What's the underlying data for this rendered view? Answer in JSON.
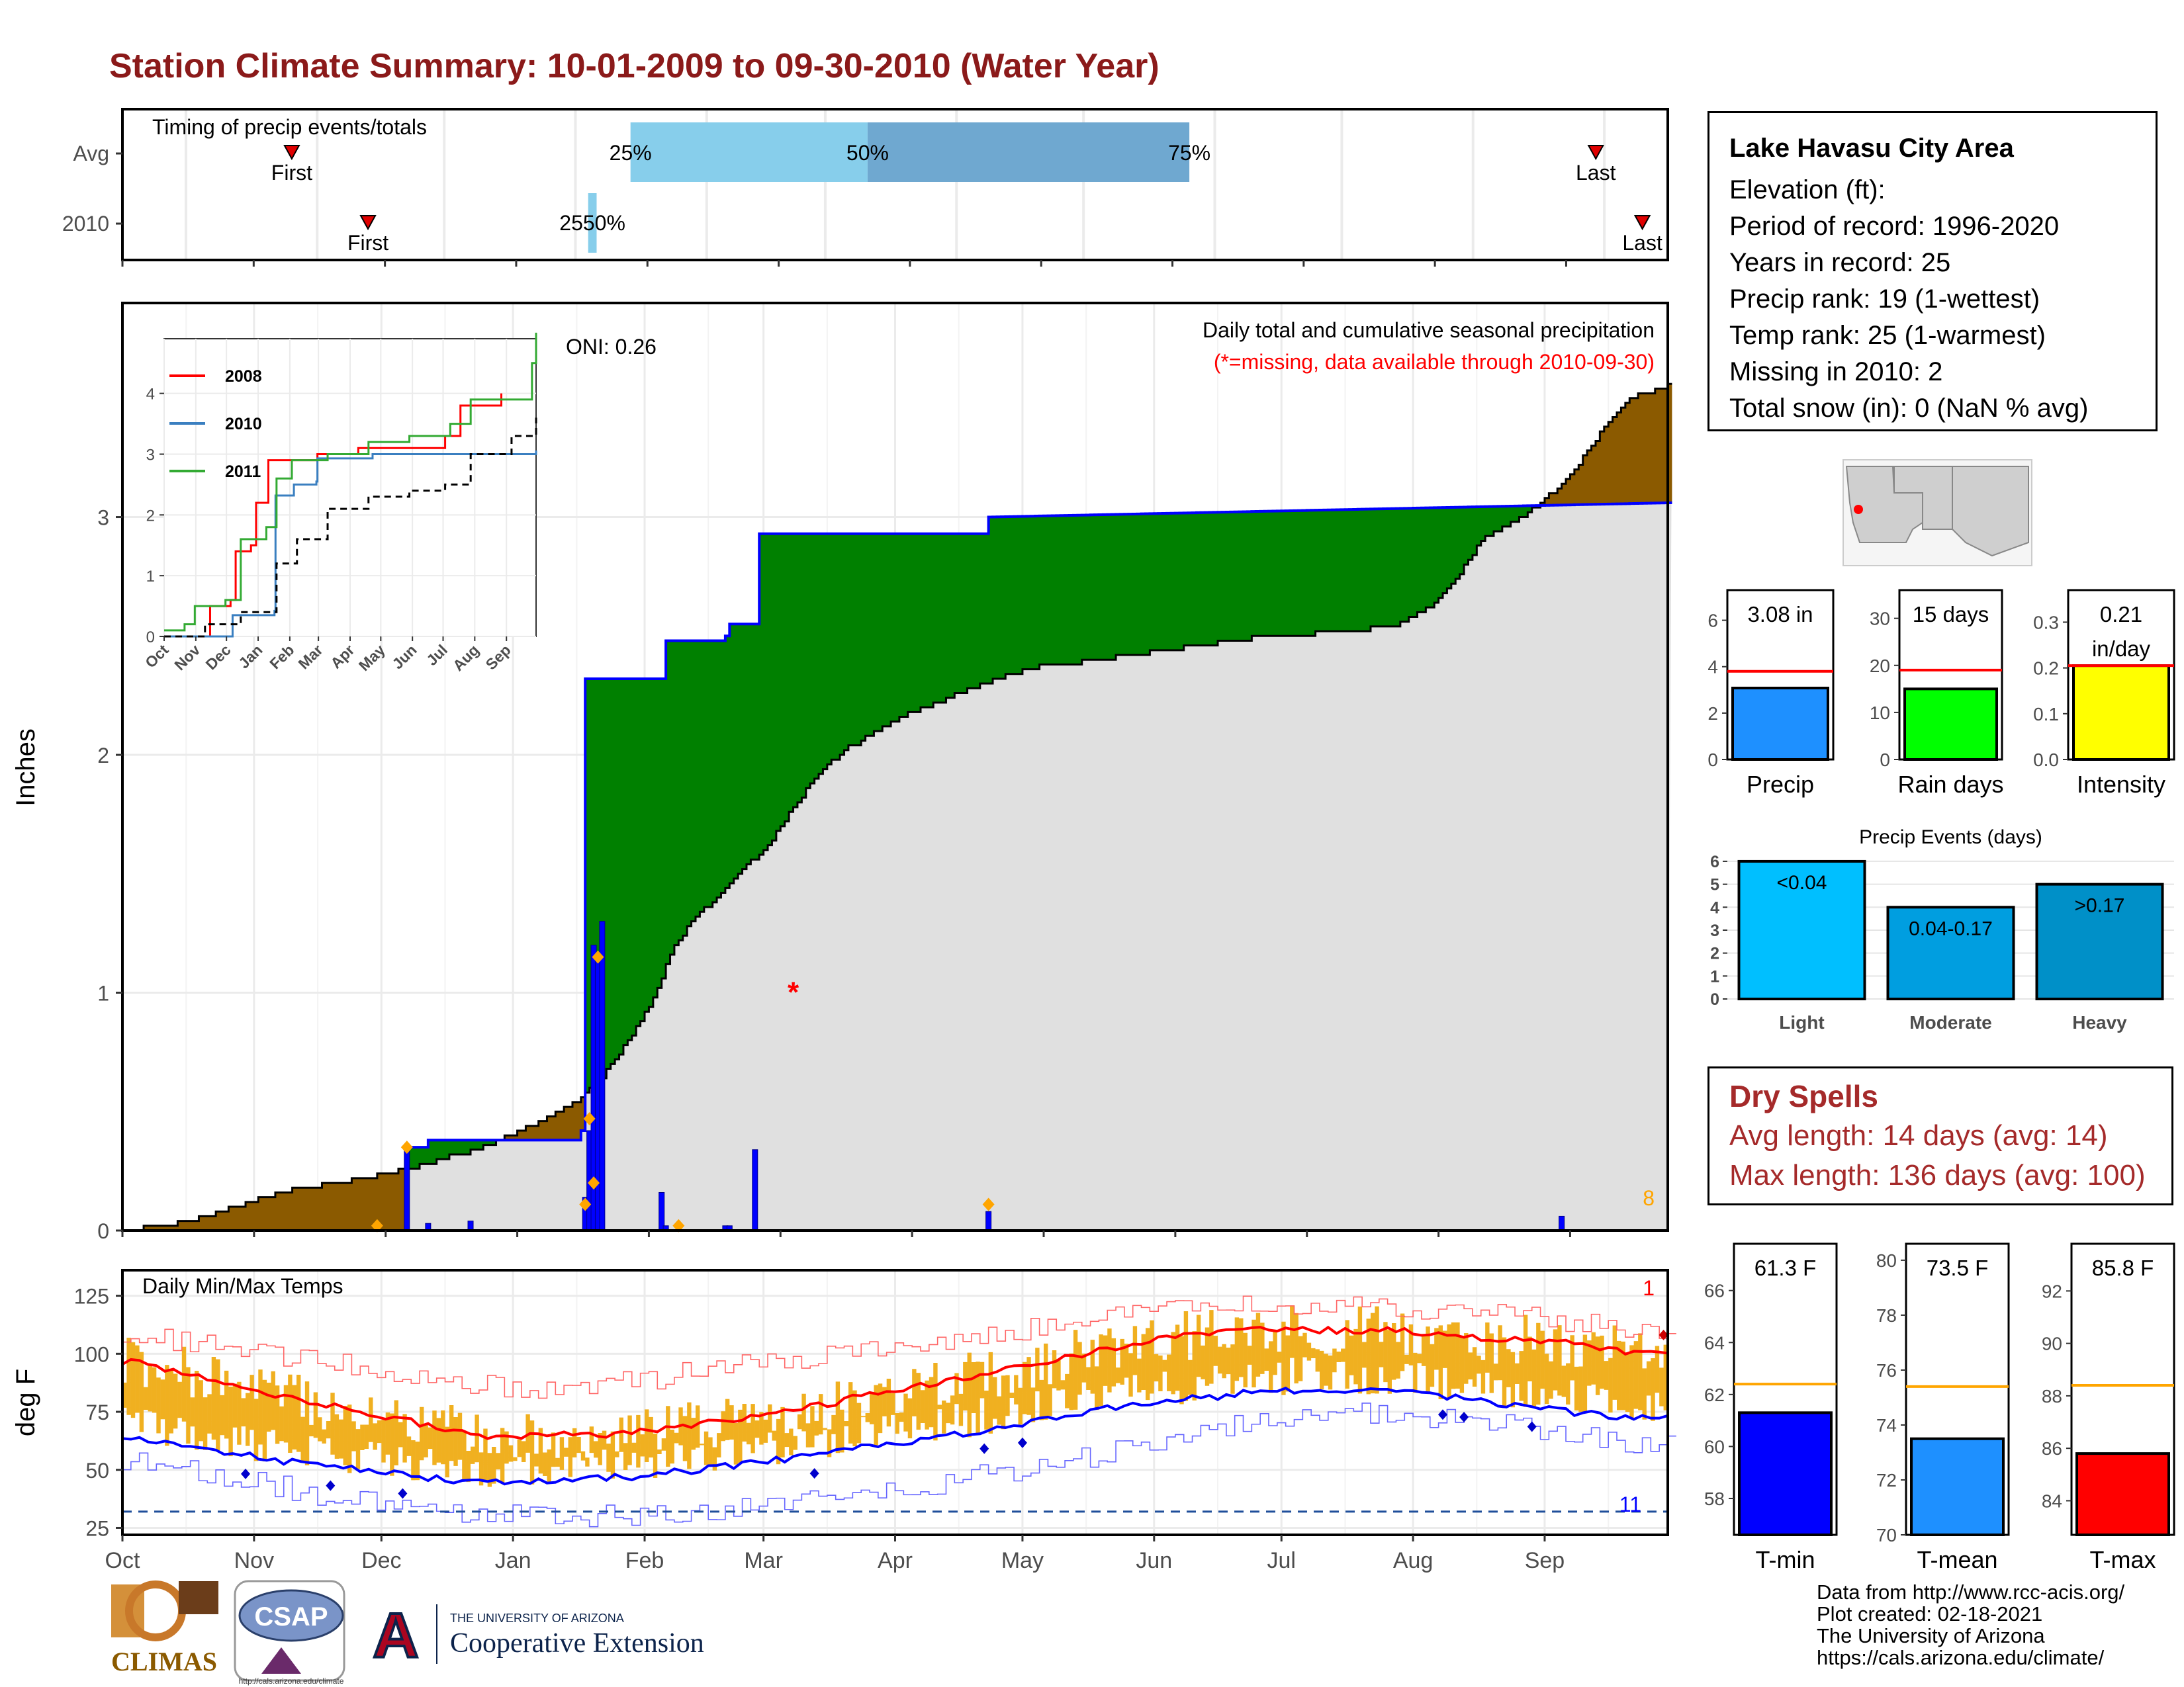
{
  "page": {
    "title": "Station Climate Summary: 10-01-2009 to 09-30-2010 (Water Year)"
  },
  "info_box": {
    "location": "Lake Havasu City Area",
    "lines": [
      "Elevation (ft):",
      "Period of record: 1996-2020",
      "Years in record: 25",
      "Precip rank: 19 (1-wettest)",
      "Temp rank: 25 (1-warmest)",
      "Missing in 2010: 2",
      "Total snow (in): 0 (NaN % avg)"
    ]
  },
  "dry_spells": {
    "title": "Dry Spells",
    "avg": "Avg length: 14 days (avg: 14)",
    "max": "Max length: 136 days (avg: 100)"
  },
  "credits": [
    "Data from http://www.rcc-acis.org/",
    "Plot created: 02-18-2021",
    "The University of Arizona",
    "https://cals.arizona.edu/climate/"
  ],
  "logos": {
    "climas": "CLIMAS",
    "csap": "CSAP",
    "csap_url": "http://cals.arizona.edu/climate",
    "ua_small": "THE UNIVERSITY OF ARIZONA",
    "ua_big": "Cooperative Extension",
    "ua_mark": "A"
  },
  "colors": {
    "title": "#8b1a1a",
    "above_avg": "#008000",
    "below_avg": "#8b5a00",
    "cumulative_line": "#0000ff",
    "avg_fill": "#e0e0e0",
    "tmax_line": "#ff0000",
    "tmin_line": "#0000ff",
    "temp_range": "#f0b020",
    "dry_spells": "#a52a2a"
  },
  "chart_data": [
    {
      "id": "timing",
      "type": "bar",
      "title": "Timing of precip events/totals",
      "rows": [
        "Avg",
        "2010"
      ],
      "x_ticks": [
        "Oct",
        "Nov",
        "Dec",
        "Jan",
        "Feb",
        "Mar",
        "Apr",
        "May",
        "Jun",
        "Jul",
        "Aug",
        "Sep"
      ],
      "avg": {
        "first_day": 40,
        "q25_day": 120,
        "q50_day": 176,
        "q75_day": 252,
        "last_day": 348,
        "labels": [
          "First",
          "25%",
          "50%",
          "75%",
          "Last"
        ]
      },
      "y2010": {
        "first_day": 58,
        "q25_day": 110,
        "q75_day": 112,
        "last_day": 359,
        "overlap_label": "2550%",
        "labels": [
          "First",
          "Last"
        ]
      }
    },
    {
      "id": "precip",
      "type": "area",
      "title": "Daily total and cumulative seasonal precipitation",
      "subtitle": "(*=missing, data available through 2010-09-30)",
      "annotation": "ONI: 0.26",
      "corner_label": "8",
      "ylabel": "Inches",
      "ylim": [
        0,
        3.9
      ],
      "y_ticks": [
        0,
        1,
        2,
        3
      ],
      "x_range_days": [
        0,
        364
      ],
      "x_ticks": [
        "Oct",
        "Nov",
        "Dec",
        "Jan",
        "Feb",
        "Mar",
        "Apr",
        "May",
        "Jun",
        "Jul",
        "Aug",
        "Sep"
      ],
      "average_cumulative": [
        [
          0,
          0
        ],
        [
          10,
          0.02
        ],
        [
          20,
          0.06
        ],
        [
          30,
          0.12
        ],
        [
          40,
          0.17
        ],
        [
          50,
          0.2
        ],
        [
          60,
          0.23
        ],
        [
          70,
          0.27
        ],
        [
          75,
          0.3
        ],
        [
          85,
          0.35
        ],
        [
          95,
          0.43
        ],
        [
          105,
          0.52
        ],
        [
          112,
          0.62
        ],
        [
          120,
          0.82
        ],
        [
          125,
          0.98
        ],
        [
          130,
          1.2
        ],
        [
          135,
          1.32
        ],
        [
          140,
          1.4
        ],
        [
          145,
          1.5
        ],
        [
          152,
          1.62
        ],
        [
          158,
          1.78
        ],
        [
          164,
          1.92
        ],
        [
          170,
          2.02
        ],
        [
          178,
          2.1
        ],
        [
          186,
          2.18
        ],
        [
          196,
          2.25
        ],
        [
          206,
          2.32
        ],
        [
          216,
          2.37
        ],
        [
          230,
          2.4
        ],
        [
          250,
          2.45
        ],
        [
          270,
          2.5
        ],
        [
          290,
          2.52
        ],
        [
          300,
          2.55
        ],
        [
          308,
          2.62
        ],
        [
          314,
          2.74
        ],
        [
          320,
          2.9
        ],
        [
          330,
          3.0
        ],
        [
          340,
          3.15
        ],
        [
          348,
          3.35
        ],
        [
          355,
          3.5
        ],
        [
          364,
          3.55
        ]
      ],
      "cumulative_2010": [
        [
          0,
          0
        ],
        [
          67,
          0
        ],
        [
          67,
          0.35
        ],
        [
          72,
          0.38
        ],
        [
          108,
          0.42
        ],
        [
          109,
          2.32
        ],
        [
          127,
          2.32
        ],
        [
          128,
          2.48
        ],
        [
          142,
          2.5
        ],
        [
          143,
          2.55
        ],
        [
          149,
          2.55
        ],
        [
          150,
          2.93
        ],
        [
          203,
          2.93
        ],
        [
          204,
          3.0
        ],
        [
          364,
          3.06
        ]
      ],
      "daily_2010": [
        [
          67,
          0.35
        ],
        [
          72,
          0.03
        ],
        [
          82,
          0.04
        ],
        [
          109,
          0.14
        ],
        [
          110,
          0.42
        ],
        [
          111,
          1.2
        ],
        [
          112,
          1.14
        ],
        [
          113,
          1.3
        ],
        [
          127,
          0.16
        ],
        [
          128,
          0.02
        ],
        [
          142,
          0.02
        ],
        [
          143,
          0.02
        ],
        [
          149,
          0.34
        ],
        [
          204,
          0.08
        ],
        [
          339,
          0.06
        ]
      ],
      "daily_records": [
        [
          60,
          0.02
        ],
        [
          67,
          0.35
        ],
        [
          109,
          0.11
        ],
        [
          110,
          0.47
        ],
        [
          111,
          0.2
        ],
        [
          112,
          1.15
        ],
        [
          131,
          0.02
        ],
        [
          204,
          0.11
        ]
      ],
      "missing_day": 158,
      "missing_value": 1.0,
      "inset": {
        "type": "line",
        "x_ticks": [
          "Oct",
          "Nov",
          "Dec",
          "Jan",
          "Feb",
          "Mar",
          "Apr",
          "May",
          "Jun",
          "Jul",
          "Aug",
          "Sep"
        ],
        "y_ticks": [
          0,
          1,
          2,
          3,
          4
        ],
        "ylim": [
          0,
          4.9
        ],
        "series": [
          {
            "name": "2008",
            "color": "#ff0000",
            "points": [
              [
                0,
                0
              ],
              [
                40,
                0
              ],
              [
                45,
                0.5
              ],
              [
                65,
                0.6
              ],
              [
                70,
                1.4
              ],
              [
                85,
                1.5
              ],
              [
                90,
                2.2
              ],
              [
                102,
                2.9
              ],
              [
                120,
                2.9
              ],
              [
                150,
                3.0
              ],
              [
                190,
                3.1
              ],
              [
                230,
                3.1
              ],
              [
                275,
                3.3
              ],
              [
                290,
                3.8
              ],
              [
                330,
                4.0
              ]
            ]
          },
          {
            "name": "2010",
            "color": "#3a7fc0",
            "points": [
              [
                0,
                0
              ],
              [
                67,
                0
              ],
              [
                67,
                0.35
              ],
              [
                108,
                0.42
              ],
              [
                109,
                2.32
              ],
              [
                127,
                2.5
              ],
              [
                149,
                2.55
              ],
              [
                150,
                2.93
              ],
              [
                204,
                3.0
              ],
              [
                364,
                3.06
              ]
            ]
          },
          {
            "name": "2011",
            "color": "#33aa33",
            "points": [
              [
                0,
                0.1
              ],
              [
                20,
                0.2
              ],
              [
                30,
                0.5
              ],
              [
                60,
                0.6
              ],
              [
                75,
                1.6
              ],
              [
                100,
                1.8
              ],
              [
                110,
                2.6
              ],
              [
                125,
                2.9
              ],
              [
                160,
                3.0
              ],
              [
                200,
                3.2
              ],
              [
                240,
                3.3
              ],
              [
                280,
                3.5
              ],
              [
                300,
                3.9
              ],
              [
                340,
                3.9
              ],
              [
                360,
                4.5
              ],
              [
                364,
                5.0
              ]
            ]
          },
          {
            "name": "",
            "dashed": true,
            "color": "#000000",
            "points": [
              [
                0,
                0
              ],
              [
                40,
                0.2
              ],
              [
                75,
                0.4
              ],
              [
                110,
                1.2
              ],
              [
                130,
                1.6
              ],
              [
                160,
                2.1
              ],
              [
                200,
                2.3
              ],
              [
                240,
                2.4
              ],
              [
                275,
                2.5
              ],
              [
                300,
                3.0
              ],
              [
                340,
                3.3
              ],
              [
                364,
                3.6
              ]
            ]
          }
        ]
      }
    },
    {
      "id": "temps",
      "type": "line",
      "title": "Daily Min/Max Temps",
      "ylabel": "deg F",
      "ylim": [
        22,
        136
      ],
      "y_ticks": [
        25,
        50,
        75,
        100,
        125
      ],
      "x_ticks": [
        "Oct",
        "Nov",
        "Dec",
        "Jan",
        "Feb",
        "Mar",
        "Apr",
        "May",
        "Jun",
        "Jul",
        "Aug",
        "Sep"
      ],
      "freeze_line": 32,
      "top_right_label": "1",
      "bottom_right_label": "11",
      "avg_max": [
        [
          0,
          97
        ],
        [
          15,
          92
        ],
        [
          30,
          84
        ],
        [
          45,
          79
        ],
        [
          60,
          74
        ],
        [
          75,
          68
        ],
        [
          85,
          64
        ],
        [
          100,
          65
        ],
        [
          115,
          65
        ],
        [
          130,
          68
        ],
        [
          145,
          72
        ],
        [
          160,
          76
        ],
        [
          175,
          82
        ],
        [
          190,
          87
        ],
        [
          205,
          92
        ],
        [
          220,
          98
        ],
        [
          235,
          103
        ],
        [
          250,
          108
        ],
        [
          265,
          110
        ],
        [
          280,
          110
        ],
        [
          300,
          110
        ],
        [
          320,
          107
        ],
        [
          340,
          105
        ],
        [
          355,
          101
        ],
        [
          364,
          100
        ]
      ],
      "avg_min": [
        [
          0,
          65
        ],
        [
          15,
          60
        ],
        [
          30,
          56
        ],
        [
          45,
          52
        ],
        [
          60,
          49
        ],
        [
          75,
          46
        ],
        [
          90,
          44
        ],
        [
          105,
          46
        ],
        [
          120,
          47
        ],
        [
          135,
          50
        ],
        [
          150,
          53
        ],
        [
          165,
          57
        ],
        [
          180,
          61
        ],
        [
          195,
          65
        ],
        [
          210,
          69
        ],
        [
          225,
          74
        ],
        [
          240,
          79
        ],
        [
          255,
          81
        ],
        [
          270,
          84
        ],
        [
          285,
          85
        ],
        [
          300,
          84
        ],
        [
          315,
          81
        ],
        [
          330,
          77
        ],
        [
          345,
          74
        ],
        [
          364,
          72
        ]
      ],
      "record_max": [
        [
          0,
          110
        ],
        [
          30,
          100
        ],
        [
          60,
          93
        ],
        [
          90,
          85
        ],
        [
          120,
          88
        ],
        [
          150,
          96
        ],
        [
          180,
          104
        ],
        [
          210,
          110
        ],
        [
          240,
          120
        ],
        [
          270,
          122
        ],
        [
          300,
          120
        ],
        [
          330,
          116
        ],
        [
          364,
          110
        ]
      ],
      "record_min": [
        [
          0,
          55
        ],
        [
          30,
          45
        ],
        [
          60,
          35
        ],
        [
          90,
          30
        ],
        [
          120,
          30
        ],
        [
          150,
          35
        ],
        [
          180,
          40
        ],
        [
          210,
          50
        ],
        [
          240,
          60
        ],
        [
          270,
          72
        ],
        [
          300,
          75
        ],
        [
          330,
          68
        ],
        [
          364,
          60
        ]
      ],
      "record_low_marks": [
        29,
        49,
        66,
        163,
        203,
        212,
        311,
        316,
        332
      ],
      "record_high_marks": [
        363
      ]
    },
    {
      "id": "bars_precip",
      "type": "bar",
      "categories": [
        "Precip",
        "Rain days",
        "Intensity"
      ],
      "panels": [
        {
          "label": "3.08 in",
          "value": 3.08,
          "avg": 3.8,
          "ylim": [
            0,
            7.3
          ],
          "ticks": [
            0,
            2,
            4,
            6
          ],
          "color": "#1e90ff"
        },
        {
          "label": "15 days",
          "value": 15,
          "avg": 19,
          "ylim": [
            0,
            36
          ],
          "ticks": [
            0,
            10,
            20,
            30
          ],
          "color": "#00ff00"
        },
        {
          "label": "0.21",
          "label2": "in/day",
          "value": 0.205,
          "avg": 0.205,
          "ylim": [
            0,
            0.37
          ],
          "ticks": [
            "0.0",
            "0.1",
            "0.2",
            "0.3"
          ],
          "color": "#ffff00"
        }
      ]
    },
    {
      "id": "events",
      "type": "bar",
      "title": "Precip Events (days)",
      "categories": [
        "Light",
        "Moderate",
        "Heavy"
      ],
      "values": [
        6,
        4,
        5
      ],
      "labels": [
        "<0.04",
        "0.04-0.17",
        ">0.17"
      ],
      "ylim": [
        0,
        6.2
      ],
      "ticks": [
        0,
        1,
        2,
        3,
        4,
        5,
        6
      ],
      "colors": [
        "#00bfff",
        "#009ee0",
        "#0090c8"
      ]
    },
    {
      "id": "bars_temp",
      "type": "bar",
      "categories": [
        "T-min",
        "T-mean",
        "T-max"
      ],
      "panels": [
        {
          "label": "61.3 F",
          "value": 61.3,
          "avg": 62.4,
          "ylim": [
            56.6,
            67.8
          ],
          "ticks": [
            58,
            60,
            62,
            64,
            66
          ],
          "color": "#0000ff"
        },
        {
          "label": "73.5 F",
          "value": 73.5,
          "avg": 75.4,
          "ylim": [
            70,
            80.6
          ],
          "ticks": [
            70,
            72,
            74,
            76,
            78,
            80
          ],
          "color": "#1e90ff"
        },
        {
          "label": "85.8 F",
          "value": 85.8,
          "avg": 88.4,
          "ylim": [
            82.7,
            93.8
          ],
          "ticks": [
            84,
            86,
            88,
            90,
            92
          ],
          "color": "#ff0000"
        }
      ]
    }
  ]
}
